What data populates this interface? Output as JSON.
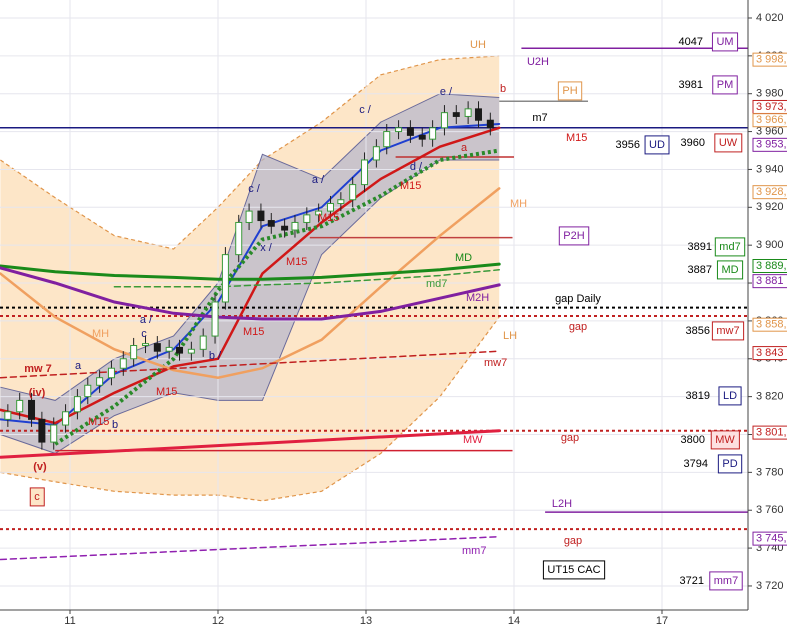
{
  "chart_data": {
    "type": "candlestick",
    "xlim": [
      -0.473,
      4.581
    ],
    "xticks": [
      {
        "value": 0,
        "label": "11"
      },
      {
        "value": 1,
        "label": "12"
      },
      {
        "value": 2,
        "label": "13"
      },
      {
        "value": 3,
        "label": "14"
      },
      {
        "value": 4,
        "label": "17"
      }
    ],
    "ylim": [
      3707.3,
      4029.5
    ],
    "yticks": [
      {
        "value": 3720,
        "label": "3 720"
      },
      {
        "value": 3740,
        "label": "3 740"
      },
      {
        "value": 3760,
        "label": "3 760"
      },
      {
        "value": 3780,
        "label": "3 780"
      },
      {
        "value": 3800,
        "label": "3 800"
      },
      {
        "value": 3820,
        "label": "3 820"
      },
      {
        "value": 3840,
        "label": "3 840"
      },
      {
        "value": 3860,
        "label": "3 860"
      },
      {
        "value": 3880,
        "label": "3 880"
      },
      {
        "value": 3900,
        "label": "3 900"
      },
      {
        "value": 3920,
        "label": "3 920"
      },
      {
        "value": 3940,
        "label": "3 940"
      },
      {
        "value": 3960,
        "label": "3 960"
      },
      {
        "value": 3980,
        "label": "3 980"
      },
      {
        "value": 4000,
        "label": "4 000"
      },
      {
        "value": 4020,
        "label": "4 020"
      }
    ],
    "grid": true,
    "candles": {
      "up_color": "#3a9a3a",
      "down_color": "#1a1a1a",
      "x": [
        -0.42,
        -0.34,
        -0.26,
        -0.19,
        -0.11,
        -0.03,
        0.05,
        0.12,
        0.2,
        0.28,
        0.36,
        0.43,
        0.51,
        0.59,
        0.67,
        0.74,
        0.82,
        0.9,
        0.98,
        1.05,
        1.14,
        1.21,
        1.29,
        1.36,
        1.45,
        1.52,
        1.6,
        1.68,
        1.76,
        1.83,
        1.91,
        1.99,
        2.07,
        2.14,
        2.22,
        2.3,
        2.38,
        2.45,
        2.53,
        2.61,
        2.69,
        2.76,
        2.84
      ],
      "open": [
        3808,
        3812,
        3818,
        3808,
        3796,
        3805,
        3812,
        3820,
        3826,
        3830,
        3835,
        3840,
        3847,
        3848,
        3844,
        3846,
        3843,
        3845,
        3852,
        3870,
        3895,
        3912,
        3918,
        3913,
        3910,
        3908,
        3912,
        3916,
        3918,
        3922,
        3924,
        3932,
        3945,
        3952,
        3960,
        3962,
        3958,
        3956,
        3962,
        3970,
        3968,
        3972,
        3966
      ],
      "high": [
        3816,
        3822,
        3822,
        3812,
        3809,
        3816,
        3824,
        3830,
        3834,
        3839,
        3844,
        3851,
        3852,
        3852,
        3850,
        3850,
        3849,
        3856,
        3874,
        3899,
        3916,
        3922,
        3922,
        3917,
        3914,
        3916,
        3920,
        3922,
        3926,
        3928,
        3936,
        3949,
        3956,
        3964,
        3966,
        3966,
        3962,
        3966,
        3974,
        3974,
        3976,
        3976,
        3970
      ],
      "low": [
        3804,
        3808,
        3804,
        3792,
        3792,
        3801,
        3808,
        3816,
        3822,
        3826,
        3831,
        3836,
        3843,
        3840,
        3840,
        3839,
        3839,
        3841,
        3848,
        3866,
        3891,
        3908,
        3909,
        3906,
        3904,
        3904,
        3908,
        3912,
        3914,
        3918,
        3920,
        3928,
        3941,
        3948,
        3956,
        3954,
        3952,
        3952,
        3958,
        3964,
        3964,
        3962,
        3958
      ],
      "close": [
        3812,
        3818,
        3808,
        3796,
        3805,
        3812,
        3820,
        3826,
        3830,
        3835,
        3840,
        3847,
        3848,
        3844,
        3846,
        3843,
        3845,
        3852,
        3870,
        3895,
        3912,
        3918,
        3913,
        3910,
        3908,
        3912,
        3916,
        3918,
        3922,
        3924,
        3932,
        3945,
        3952,
        3960,
        3962,
        3958,
        3956,
        3962,
        3970,
        3968,
        3972,
        3966,
        3962
      ]
    },
    "envelope": {
      "fill": "#fde6c8",
      "color": "#e0954a",
      "x": [
        -0.47,
        -0.1,
        0.3,
        0.7,
        1.0,
        1.3,
        1.7,
        2.1,
        2.5,
        2.9
      ],
      "upper": {
        "name": "UH",
        "values": [
          3945,
          3925,
          3905,
          3898,
          3920,
          3945,
          3965,
          3990,
          3998,
          4000
        ]
      },
      "lower": {
        "name": "LH",
        "values": [
          3780,
          3775,
          3770,
          3768,
          3768,
          3765,
          3770,
          3790,
          3820,
          3862
        ]
      }
    },
    "band": {
      "fill": "#b8b8cc",
      "color": "#6a6a9a",
      "x": [
        -0.47,
        -0.1,
        0.3,
        0.7,
        1.0,
        1.3,
        1.7,
        2.1,
        2.5,
        2.9
      ],
      "upper": [
        3825,
        3818,
        3840,
        3852,
        3880,
        3948,
        3935,
        3965,
        3980,
        3978
      ],
      "lower": [
        3800,
        3790,
        3810,
        3822,
        3818,
        3818,
        3895,
        3925,
        3945,
        3945
      ]
    },
    "series": [
      {
        "color": "#1f3fd0",
        "width": 2,
        "style": "solid",
        "x": [
          -0.47,
          -0.1,
          0.3,
          0.7,
          1.0,
          1.3,
          1.7,
          2.1,
          2.5,
          2.9
        ],
        "values": [
          3808,
          3805,
          3832,
          3845,
          3870,
          3910,
          3920,
          3950,
          3962,
          3964
        ]
      },
      {
        "name": "M15",
        "color": "#d01818",
        "width": 2.5,
        "style": "solid",
        "x": [
          -0.47,
          -0.1,
          0.3,
          0.7,
          1.0,
          1.3,
          1.7,
          2.1,
          2.5,
          2.9
        ],
        "values": [
          3813,
          3806,
          3822,
          3836,
          3840,
          3885,
          3912,
          3935,
          3952,
          3962
        ]
      },
      {
        "color": "#2a8a2a",
        "width": 4,
        "style": "dotted",
        "x": [
          -0.47,
          -0.1,
          0.3,
          0.7,
          1.0,
          1.3,
          1.7,
          2.1,
          2.5,
          2.9
        ],
        "values": [
          null,
          3795,
          3815,
          3840,
          3876,
          3903,
          3910,
          3926,
          3945,
          3950
        ]
      },
      {
        "name": "MH",
        "color": "#f0a060",
        "width": 2.5,
        "style": "solid",
        "x": [
          -0.47,
          -0.1,
          0.3,
          0.7,
          1.0,
          1.3,
          1.7,
          2.1,
          2.5,
          2.9
        ],
        "values": [
          3885,
          3862,
          3845,
          3834,
          3830,
          3835,
          3850,
          3878,
          3905,
          3930
        ]
      },
      {
        "name": "MD",
        "color": "#1a8a1a",
        "width": 3,
        "style": "solid",
        "x": [
          -0.47,
          -0.1,
          0.3,
          0.7,
          1.0,
          1.3,
          1.7,
          2.1,
          2.5,
          2.9
        ],
        "values": [
          3889,
          3886,
          3884,
          3883,
          3882,
          3882,
          3883,
          3885,
          3887,
          3890
        ]
      },
      {
        "name": "md7",
        "color": "#3a9a3a",
        "width": 1.5,
        "style": "dashed",
        "x": [
          -0.47,
          -0.1,
          0.3,
          0.7,
          1.0,
          1.3,
          1.7,
          2.1,
          2.5,
          2.9
        ],
        "values": [
          null,
          null,
          3878,
          3878,
          3878,
          3879,
          3880,
          3882,
          3884,
          3887
        ]
      },
      {
        "name": "M2H",
        "color": "#8020a0",
        "width": 3,
        "style": "solid",
        "x": [
          -0.47,
          -0.1,
          0.3,
          0.7,
          1.0,
          1.3,
          1.7,
          2.1,
          2.5,
          2.9
        ],
        "values": [
          3888,
          3880,
          3870,
          3864,
          3862,
          3861,
          3861,
          3865,
          3872,
          3879
        ]
      },
      {
        "name": "mw7",
        "color": "#c02020",
        "width": 1.5,
        "style": "dashed",
        "x": [
          -0.47,
          2.9
        ],
        "values": [
          3830,
          3844
        ]
      },
      {
        "name": "MW",
        "color": "#e02040",
        "width": 3,
        "style": "solid",
        "x": [
          -0.47,
          2.9
        ],
        "values": [
          3788,
          3802
        ]
      },
      {
        "name": "mm7",
        "color": "#9020b0",
        "width": 1.5,
        "style": "dashed",
        "x": [
          -0.47,
          2.9
        ],
        "values": [
          3734,
          3746
        ]
      }
    ],
    "levels": [
      {
        "value": 3962,
        "color": "#1a1a80",
        "style": "solid",
        "x": [
          -0.473,
          4.581
        ]
      },
      {
        "name": "U2H",
        "value": 4004,
        "color": "#8020a0",
        "style": "solid",
        "x": [
          3.05,
          4.581
        ]
      },
      {
        "name": "PH",
        "value": 3976,
        "color": "#888888",
        "label_color": "#e0954a",
        "style": "solid",
        "x": [
          2.9,
          3.5
        ]
      },
      {
        "value": 3946.6,
        "color": "#c03030",
        "style": "solid",
        "x": [
          2.2,
          3.0
        ]
      },
      {
        "name": "P2H",
        "value": 3904,
        "color": "#c04040",
        "label_color": "#8020a0",
        "style": "solid",
        "x": [
          1.62,
          2.99
        ]
      },
      {
        "value": 3791.5,
        "color": "#d02030",
        "style": "solid",
        "x": [
          -0.1,
          2.99
        ]
      },
      {
        "name": "L2H",
        "value": 3759,
        "color": "#8020a0",
        "style": "solid",
        "x": [
          3.21,
          4.581
        ]
      },
      {
        "name": "gap Daily",
        "value": 3867,
        "color": "#000000",
        "style": "dotted",
        "x": [
          -0.473,
          4.581
        ]
      },
      {
        "name": "gap",
        "value": 3862.6,
        "color": "#c02020",
        "style": "dotted",
        "x": [
          -0.473,
          4.581
        ]
      },
      {
        "name": "gap",
        "value": 3802,
        "color": "#c02020",
        "style": "dotted",
        "x": [
          -0.473,
          4.581
        ]
      },
      {
        "name": "gap",
        "value": 3750,
        "color": "#c02020",
        "style": "dotted",
        "x": [
          -0.473,
          4.581
        ]
      }
    ],
    "price_tags": [
      {
        "value": 3998,
        "label": "3 998,",
        "color": "#e0954a"
      },
      {
        "value": 3973,
        "label": "3 973,",
        "color": "#c02020"
      },
      {
        "value": 3966,
        "label": "3 966,",
        "color": "#e0954a"
      },
      {
        "value": 3953,
        "label": "3 953,",
        "color": "#8020a0"
      },
      {
        "value": 3928,
        "label": "3 928,",
        "color": "#e0954a"
      },
      {
        "value": 3889,
        "label": "3 889,",
        "color": "#1a8a1a"
      },
      {
        "value": 3881,
        "label": "3 881",
        "color": "#8020a0"
      },
      {
        "value": 3858,
        "label": "3 858,",
        "color": "#e0954a"
      },
      {
        "value": 3843,
        "label": "3 843",
        "color": "#c02020"
      },
      {
        "value": 3801,
        "label": "3 801,",
        "color": "#c02020"
      },
      {
        "value": 3745,
        "label": "3 745,",
        "color": "#8020a0"
      }
    ],
    "pivots": [
      {
        "value": 4047,
        "label": "UM",
        "color": "#8020a0"
      },
      {
        "value": 3981,
        "label": "PM",
        "color": "#8020a0"
      },
      {
        "value": 3956,
        "label": "UD",
        "color": "#1a1a80"
      },
      {
        "value": 3960,
        "label": "UW",
        "color": "#c02020"
      },
      {
        "value": 3891,
        "label": "md7",
        "color": "#1a8a1a"
      },
      {
        "value": 3887,
        "label": "MD",
        "color": "#1a8a1a"
      },
      {
        "value": 3856,
        "label": "mw7",
        "color": "#c02020"
      },
      {
        "value": 3819,
        "label": "LD",
        "color": "#1a1a80"
      },
      {
        "value": 3800,
        "label": "MW",
        "color": "#c02020"
      },
      {
        "value": 3794,
        "label": "PD",
        "color": "#1a1a80"
      },
      {
        "value": 3721,
        "label": "mm7",
        "color": "#8020a0"
      }
    ],
    "annotations": [
      {
        "text": "m7",
        "color": "#000000"
      },
      {
        "text": "c /",
        "color": "#1a1a80"
      },
      {
        "text": "e /",
        "color": "#1a1a80"
      },
      {
        "text": "b",
        "color": "#c02020"
      },
      {
        "text": "a",
        "color": "#c02020"
      },
      {
        "text": "d /",
        "color": "#1a1a80"
      },
      {
        "text": "a /",
        "color": "#1a1a80"
      },
      {
        "text": "c /",
        "color": "#1a1a80"
      },
      {
        "text": "x /",
        "color": "#1a1a80"
      },
      {
        "text": "b /",
        "color": "#1a1a80"
      },
      {
        "text": "a /",
        "color": "#1a1a80"
      },
      {
        "text": "c",
        "color": "#1a1a80"
      },
      {
        "text": "a",
        "color": "#1a1a80"
      },
      {
        "text": "b",
        "color": "#1a1a80"
      },
      {
        "text": "mw 7",
        "color": "#c02020"
      },
      {
        "text": "(iv)",
        "color": "#c02020"
      },
      {
        "text": "(v)",
        "color": "#c02020"
      },
      {
        "text": "c",
        "color": "#c02020",
        "boxed": true
      },
      {
        "text": "UT15 CAC",
        "color": "#000000",
        "boxed": true
      }
    ]
  }
}
